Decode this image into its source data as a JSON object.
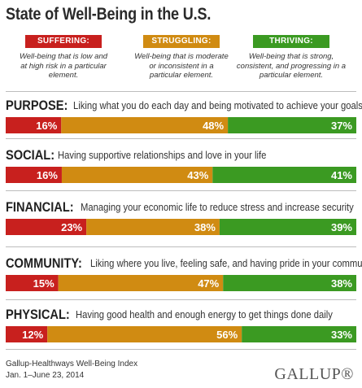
{
  "title": "State of Well-Being in the U.S.",
  "legend": [
    {
      "label": "SUFFERING:",
      "description": "Well-being that is low and at high risk in a particular element.",
      "color": "#c8201e"
    },
    {
      "label": "STRUGGLING:",
      "description": "Well-being that is moderate or inconsistent in a particular element.",
      "color": "#d08b12"
    },
    {
      "label": "THRIVING:",
      "description": "Well-being that is strong, consistent, and progressing in a particular element.",
      "color": "#3b9a22"
    }
  ],
  "chart_data": {
    "type": "bar",
    "orientation": "horizontal-stacked",
    "title": "State of Well-Being in the U.S.",
    "unit": "%",
    "series": [
      {
        "name": "SUFFERING:",
        "color": "#c8201e"
      },
      {
        "name": "STRUGGLING:",
        "color": "#d08b12"
      },
      {
        "name": "THRIVING:",
        "color": "#3b9a22"
      }
    ],
    "categories": [
      {
        "name": "PURPOSE:",
        "description": "Liking what you do each day and being motivated to achieve your goals",
        "values": [
          16,
          48,
          37
        ]
      },
      {
        "name": "SOCIAL:",
        "description": "Having supportive relationships and love in your life",
        "values": [
          16,
          43,
          41
        ]
      },
      {
        "name": "FINANCIAL:",
        "description": "Managing your economic life to reduce stress and increase security",
        "values": [
          23,
          38,
          39
        ]
      },
      {
        "name": "COMMUNITY:",
        "description": "Liking where you live, feeling safe, and having pride in your community",
        "values": [
          15,
          47,
          38
        ]
      },
      {
        "name": "PHYSICAL:",
        "description": "Having good health and enough energy to get things done daily",
        "values": [
          12,
          56,
          33
        ]
      }
    ]
  },
  "footer": {
    "source": "Gallup-Healthways Well-Being Index",
    "dates": "Jan. 1–June 23, 2014",
    "logo": "GALLUP®"
  }
}
